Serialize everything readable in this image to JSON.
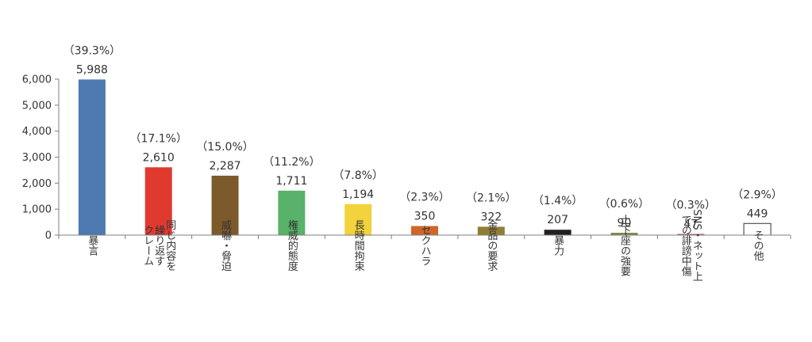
{
  "chart_data": {
    "type": "bar",
    "title": "",
    "xlabel": "",
    "ylabel": "",
    "ylim": [
      0,
      6000
    ],
    "yticks": [
      0,
      1000,
      2000,
      3000,
      4000,
      5000,
      6000
    ],
    "ytick_labels": [
      "0",
      "1,000",
      "2,000",
      "3,000",
      "4,000",
      "5,000",
      "6,000"
    ],
    "grid": false,
    "legend": "none",
    "categories": [
      [
        "暴言"
      ],
      [
        "同じ内容を",
        "繰り返す",
        "クレーム"
      ],
      [
        "威嚇・脅迫"
      ],
      [
        "権威的態度"
      ],
      [
        "長時間拘束"
      ],
      [
        "セクハラ"
      ],
      [
        "金品の要求"
      ],
      [
        "暴力"
      ],
      [
        "土下座の強要"
      ],
      [
        "SNS・ネット上",
        "での誹謗中傷"
      ],
      [
        "その他"
      ]
    ],
    "values": [
      5988,
      2610,
      2287,
      1711,
      1194,
      350,
      322,
      207,
      90,
      47,
      449
    ],
    "value_labels": [
      "5,988",
      "2,610",
      "2,287",
      "1,711",
      "1,194",
      "350",
      "322",
      "207",
      "90",
      "47",
      "449"
    ],
    "percent_labels": [
      "（39.3%）",
      "（17.1%）",
      "（15.0%）",
      "（11.2%）",
      "（7.8%）",
      "（2.3%）",
      "（2.1%）",
      "（1.4%）",
      "（0.6%）",
      "（0.3%）",
      "（2.9%）"
    ],
    "colors": [
      "#4e79b0",
      "#e03a30",
      "#7d5a2c",
      "#58b26a",
      "#f2d33b",
      "#d06529",
      "#8f7d36",
      "#231f1f",
      "#7f8c3e",
      "#a86b70",
      "#ffffff"
    ]
  }
}
